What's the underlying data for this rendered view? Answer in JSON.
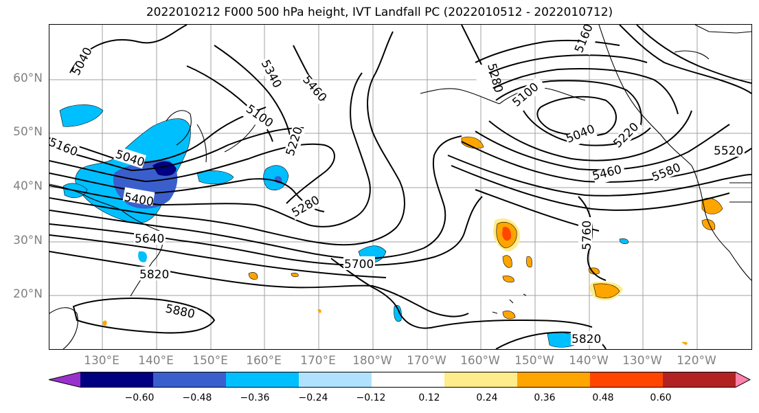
{
  "title": "2022010212 F000 500 hPa height, IVT Landfall PC (2022010512 - 2022010712)",
  "map": {
    "lat_ticks": [
      "60°N",
      "50°N",
      "40°N",
      "30°N",
      "20°N"
    ],
    "lon_ticks": [
      "130°E",
      "140°E",
      "150°E",
      "160°E",
      "170°E",
      "180°W",
      "170°W",
      "160°W",
      "150°W",
      "140°W",
      "130°W",
      "120°W"
    ],
    "contour_labels": [
      "5040",
      "5340",
      "5460",
      "5100",
      "5220",
      "5160",
      "5040",
      "5400",
      "5280",
      "5640",
      "5820",
      "5700",
      "5880",
      "5280",
      "5100",
      "5040",
      "5220",
      "5160",
      "5460",
      "5580",
      "5520",
      "5760",
      "5820"
    ],
    "gridline_color": "#a0a0a0",
    "coastline_color": "#000000",
    "contour_color": "#000000"
  },
  "colorbar": {
    "ticks": [
      "−0.60",
      "−0.48",
      "−0.36",
      "−0.24",
      "−0.12",
      "0.12",
      "0.24",
      "0.36",
      "0.48",
      "0.60"
    ],
    "colors": [
      "#9932cc",
      "#000080",
      "#3a5fcd",
      "#00bfff",
      "#b0e2ff",
      "#ffffff",
      "#ffec8b",
      "#ffa500",
      "#ff4500",
      "#b22222",
      "#ff82ab"
    ]
  }
}
